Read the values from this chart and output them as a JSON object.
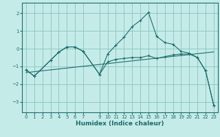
{
  "xlabel": "Humidex (Indice chaleur)",
  "bg_color": "#c5ebe8",
  "grid_color": "#8ec8c4",
  "line_color": "#1a6b6a",
  "xlim": [
    -0.5,
    23.5
  ],
  "ylim": [
    -3.6,
    2.6
  ],
  "xticks": [
    0,
    1,
    2,
    3,
    4,
    5,
    6,
    7,
    9,
    10,
    11,
    12,
    13,
    14,
    15,
    16,
    17,
    18,
    19,
    20,
    21,
    22,
    23
  ],
  "yticks": [
    -3,
    -2,
    -1,
    0,
    1,
    2
  ],
  "curve_upper_x": [
    0,
    1,
    3,
    4,
    5,
    6,
    7,
    9,
    10,
    11,
    12,
    13,
    14,
    15,
    16,
    17,
    18,
    19,
    20,
    21,
    22,
    23
  ],
  "curve_upper_y": [
    -1.2,
    -1.55,
    -0.65,
    -0.2,
    0.1,
    0.1,
    -0.15,
    -1.45,
    -0.3,
    0.2,
    0.65,
    1.25,
    1.6,
    2.05,
    0.7,
    0.35,
    0.25,
    -0.15,
    -0.25,
    -0.5,
    -1.25,
    -3.2
  ],
  "curve_lower_x": [
    0,
    1,
    3,
    4,
    5,
    6,
    7,
    9,
    10,
    11,
    12,
    13,
    14,
    15,
    16,
    17,
    18,
    19,
    20,
    21,
    22,
    23
  ],
  "curve_lower_y": [
    -1.2,
    -1.55,
    -0.65,
    -0.2,
    0.1,
    0.1,
    -0.15,
    -1.45,
    -0.75,
    -0.6,
    -0.55,
    -0.5,
    -0.5,
    -0.4,
    -0.55,
    -0.45,
    -0.35,
    -0.3,
    -0.3,
    -0.5,
    -1.25,
    -3.2
  ],
  "line_x": [
    0,
    23
  ],
  "line_y": [
    -1.35,
    -0.18
  ]
}
